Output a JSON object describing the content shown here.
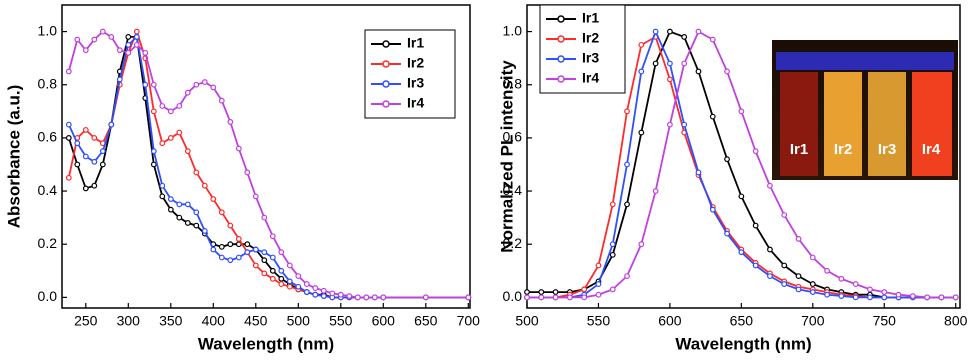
{
  "chart_data": [
    {
      "type": "line",
      "xlabel": "Wavelength (nm)",
      "ylabel": "Absorbance (a.u.)",
      "xlim": [
        222,
        702
      ],
      "xticks": [
        250,
        300,
        350,
        400,
        450,
        500,
        550,
        600,
        650,
        700
      ],
      "ylim": [
        -0.04,
        1.1
      ],
      "yticks": [
        {
          "value": 0,
          "label": "0.0"
        },
        0.2,
        0.4,
        0.6,
        0.8,
        {
          "value": 1,
          "label": "1.0"
        }
      ],
      "x": [
        230,
        240,
        250,
        260,
        270,
        280,
        290,
        300,
        310,
        320,
        330,
        340,
        350,
        360,
        370,
        380,
        390,
        400,
        410,
        420,
        430,
        440,
        450,
        460,
        470,
        480,
        490,
        500,
        510,
        520,
        530,
        540,
        550,
        560,
        570,
        580,
        590,
        600,
        650,
        700
      ],
      "series": [
        {
          "name": "Ir1",
          "color": "#000000",
          "values": [
            0.6,
            0.5,
            0.41,
            0.42,
            0.5,
            0.65,
            0.85,
            0.98,
            0.98,
            0.75,
            0.5,
            0.38,
            0.33,
            0.3,
            0.28,
            0.27,
            0.24,
            0.2,
            0.19,
            0.2,
            0.2,
            0.2,
            0.18,
            0.14,
            0.1,
            0.07,
            0.05,
            0.03,
            0.02,
            0.01,
            0.01,
            0,
            0,
            0,
            0,
            0,
            0,
            0,
            0,
            0
          ]
        },
        {
          "name": "Ir2",
          "color": "#ff2a2a",
          "values": [
            0.45,
            0.6,
            0.63,
            0.6,
            0.58,
            0.65,
            0.8,
            0.92,
            1.0,
            0.9,
            0.7,
            0.58,
            0.6,
            0.62,
            0.55,
            0.47,
            0.42,
            0.37,
            0.32,
            0.27,
            0.22,
            0.17,
            0.12,
            0.09,
            0.07,
            0.05,
            0.04,
            0.03,
            0.02,
            0.01,
            0.005,
            0,
            0,
            0,
            0,
            0,
            0,
            0,
            0,
            0
          ]
        },
        {
          "name": "Ir3",
          "color": "#2f4fff",
          "values": [
            0.65,
            0.58,
            0.53,
            0.51,
            0.55,
            0.65,
            0.82,
            0.95,
            0.98,
            0.8,
            0.55,
            0.42,
            0.37,
            0.35,
            0.35,
            0.32,
            0.25,
            0.18,
            0.15,
            0.14,
            0.15,
            0.17,
            0.18,
            0.17,
            0.15,
            0.1,
            0.06,
            0.04,
            0.02,
            0.01,
            0.005,
            0,
            0,
            0,
            0,
            0,
            0,
            0,
            0,
            0
          ]
        },
        {
          "name": "Ir4",
          "color": "#c040e0",
          "values": [
            0.85,
            0.97,
            0.93,
            0.97,
            1.0,
            0.98,
            0.93,
            0.92,
            0.95,
            0.92,
            0.8,
            0.72,
            0.7,
            0.72,
            0.77,
            0.8,
            0.81,
            0.79,
            0.74,
            0.66,
            0.56,
            0.47,
            0.38,
            0.3,
            0.23,
            0.17,
            0.12,
            0.08,
            0.05,
            0.035,
            0.025,
            0.015,
            0.01,
            0.005,
            0,
            0,
            0,
            0,
            0,
            0
          ]
        }
      ]
    },
    {
      "type": "line",
      "xlabel": "Wavelength (nm)",
      "ylabel": "Normalized PL intensity",
      "xlim": [
        500,
        803
      ],
      "xticks": [
        500,
        550,
        600,
        650,
        700,
        750,
        800
      ],
      "ylim": [
        -0.04,
        1.1
      ],
      "yticks": [
        {
          "value": 0,
          "label": "0.0"
        },
        0.2,
        0.4,
        0.6,
        0.8,
        {
          "value": 1,
          "label": "1.0"
        }
      ],
      "x": [
        500,
        510,
        520,
        530,
        540,
        550,
        560,
        570,
        580,
        590,
        600,
        610,
        620,
        630,
        640,
        650,
        660,
        670,
        680,
        690,
        700,
        710,
        720,
        730,
        740,
        750,
        760,
        770,
        780,
        790,
        800
      ],
      "series": [
        {
          "name": "Ir1",
          "color": "#000000",
          "values": [
            0.02,
            0.02,
            0.02,
            0.02,
            0.03,
            0.06,
            0.16,
            0.35,
            0.62,
            0.88,
            1.0,
            0.98,
            0.85,
            0.68,
            0.52,
            0.38,
            0.27,
            0.18,
            0.12,
            0.08,
            0.05,
            0.03,
            0.02,
            0.01,
            0.01,
            0,
            0,
            0,
            0,
            0,
            0
          ]
        },
        {
          "name": "Ir2",
          "color": "#ff2a2a",
          "values": [
            0,
            0,
            0,
            0.01,
            0.03,
            0.12,
            0.35,
            0.7,
            0.95,
            0.98,
            0.82,
            0.62,
            0.46,
            0.34,
            0.25,
            0.18,
            0.13,
            0.09,
            0.06,
            0.04,
            0.03,
            0.02,
            0.01,
            0.005,
            0,
            0,
            0,
            0,
            0,
            0,
            0
          ]
        },
        {
          "name": "Ir3",
          "color": "#2f4fff",
          "values": [
            0,
            0,
            0,
            0,
            0.01,
            0.05,
            0.2,
            0.5,
            0.85,
            1.0,
            0.88,
            0.65,
            0.47,
            0.33,
            0.24,
            0.17,
            0.12,
            0.08,
            0.05,
            0.03,
            0.02,
            0.01,
            0.005,
            0,
            0,
            0,
            0,
            0,
            0,
            0,
            0
          ]
        },
        {
          "name": "Ir4",
          "color": "#c040e0",
          "values": [
            0,
            0,
            0,
            0,
            0,
            0.01,
            0.03,
            0.08,
            0.2,
            0.4,
            0.65,
            0.88,
            1.0,
            0.97,
            0.85,
            0.7,
            0.55,
            0.42,
            0.31,
            0.22,
            0.15,
            0.1,
            0.07,
            0.05,
            0.03,
            0.02,
            0.01,
            0.005,
            0,
            0,
            0
          ]
        }
      ],
      "inset_labels": [
        "Ir1",
        "Ir2",
        "Ir3",
        "Ir4"
      ]
    }
  ]
}
